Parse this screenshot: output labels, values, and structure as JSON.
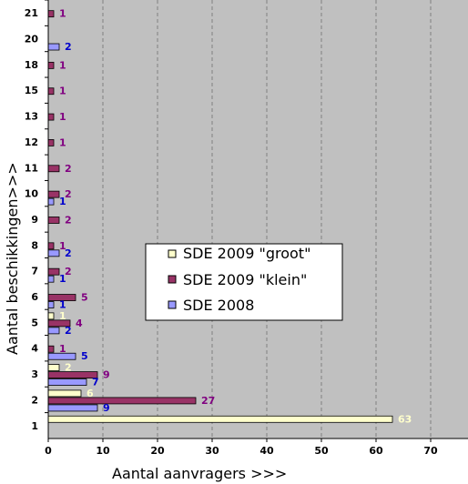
{
  "chart_data": {
    "type": "bar",
    "orientation": "horizontal",
    "xlabel": "Aantal aanvragers >>>",
    "ylabel": "Aantal beschikkingen>>>",
    "xlim": [
      0,
      76
    ],
    "xticks": [
      0,
      10,
      20,
      30,
      40,
      50,
      60,
      70
    ],
    "grid": "vertical dashed",
    "legend_position": "center",
    "categories": [
      "1",
      "2",
      "3",
      "4",
      "5",
      "6",
      "7",
      "8",
      "9",
      "10",
      "11",
      "12",
      "13",
      "15",
      "18",
      "20",
      "21"
    ],
    "series": [
      {
        "name": "SDE 2009 \"groot\"",
        "color": "#ffffcc",
        "label_color": "#ffffcc",
        "values": [
          63,
          6,
          2,
          null,
          1,
          null,
          null,
          null,
          null,
          null,
          null,
          null,
          null,
          null,
          null,
          null,
          null
        ]
      },
      {
        "name": "SDE 2009 \"klein\"",
        "color": "#993366",
        "label_color": "#800080",
        "values": [
          null,
          27,
          9,
          1,
          4,
          5,
          2,
          1,
          2,
          2,
          2,
          1,
          1,
          1,
          1,
          null,
          1
        ]
      },
      {
        "name": "SDE 2008",
        "color": "#9999ff",
        "label_color": "#0000cc",
        "values": [
          null,
          9,
          7,
          5,
          2,
          1,
          1,
          2,
          null,
          1,
          null,
          null,
          null,
          null,
          null,
          2,
          null
        ]
      }
    ],
    "plot_background": "#c0c0c0"
  }
}
